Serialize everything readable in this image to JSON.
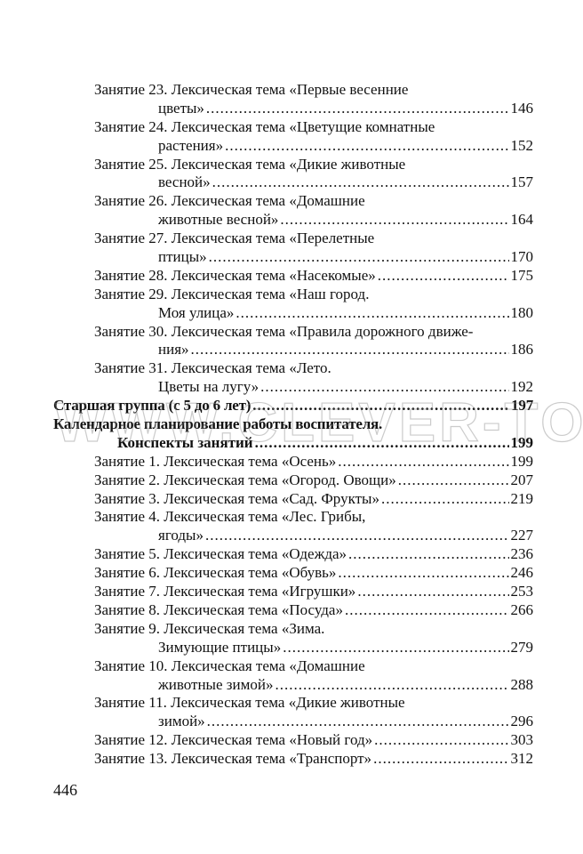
{
  "entries": [
    {
      "lines": [
        "Занятие 23. Лексическая тема «Первые весенние",
        "цветы»"
      ],
      "page": "146"
    },
    {
      "lines": [
        "Занятие 24. Лексическая тема «Цветущие комнатные",
        "растения»"
      ],
      "page": "152"
    },
    {
      "lines": [
        "Занятие 25. Лексическая тема «Дикие животные",
        "весной»"
      ],
      "page": "157"
    },
    {
      "lines": [
        "Занятие 26. Лексическая тема «Домашние",
        "животные весной»"
      ],
      "page": "164"
    },
    {
      "lines": [
        "Занятие 27. Лексическая тема «Перелетные",
        "птицы»"
      ],
      "page": "170"
    },
    {
      "lines": [
        "Занятие 28. Лексическая тема «Насекомые»"
      ],
      "page": "175"
    },
    {
      "lines": [
        "Занятие 29. Лексическая тема «Наш город.",
        "Моя улица»"
      ],
      "page": "180"
    },
    {
      "lines": [
        "Занятие 30. Лексическая тема «Правила дорожного движе-",
        "ния»"
      ],
      "page": "186"
    },
    {
      "lines": [
        "Занятие 31. Лексическая тема «Лето.",
        "Цветы на лугу»"
      ],
      "page": "192"
    },
    {
      "section": true,
      "lines": [
        "Старшая группа (с 5 до 6 лет)"
      ],
      "page": "197"
    },
    {
      "section": true,
      "lines": [
        "Календарное планирование работы воспитателя.",
        "Конспекты занятий"
      ],
      "page": "199"
    },
    {
      "lines": [
        "Занятие 1. Лексическая тема «Осень»"
      ],
      "page": "199"
    },
    {
      "lines": [
        "Занятие 2. Лексическая тема «Огород. Овощи»"
      ],
      "page": "207"
    },
    {
      "lines": [
        "Занятие 3. Лексическая тема «Сад. Фрукты»"
      ],
      "page": "219"
    },
    {
      "lines": [
        "Занятие 4. Лексическая тема «Лес. Грибы,",
        "ягоды»"
      ],
      "page": "227"
    },
    {
      "lines": [
        "Занятие 5. Лексическая тема «Одежда»"
      ],
      "page": "236"
    },
    {
      "lines": [
        "Занятие 6. Лексическая тема «Обувь»"
      ],
      "page": "246"
    },
    {
      "lines": [
        "Занятие 7. Лексическая тема «Игрушки»"
      ],
      "page": "253"
    },
    {
      "lines": [
        "Занятие 8. Лексическая тема «Посуда»"
      ],
      "page": "266"
    },
    {
      "lines": [
        "Занятие 9. Лексическая тема «Зима.",
        "Зимующие птицы»"
      ],
      "page": "279"
    },
    {
      "lines": [
        "Занятие 10. Лексическая тема «Домашние",
        "животные зимой»"
      ],
      "page": "288"
    },
    {
      "lines": [
        "Занятие 11. Лексическая тема «Дикие животные",
        "зимой»"
      ],
      "page": "296"
    },
    {
      "lines": [
        "Занятие 12. Лексическая тема «Новый год»"
      ],
      "page": "303"
    },
    {
      "lines": [
        "Занятие 13. Лексическая тема «Транспорт»"
      ],
      "page": "312"
    }
  ],
  "page_number": "446",
  "watermark": "WWW.CLEVER-TOY.RU"
}
